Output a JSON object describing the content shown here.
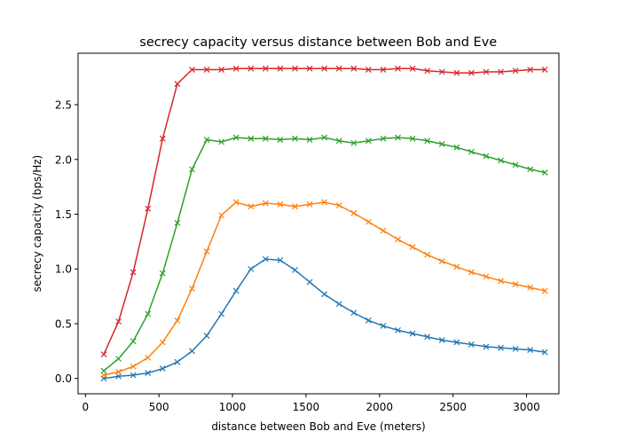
{
  "chart_data": {
    "type": "line",
    "title": "secrecy capacity versus distance between Bob and Eve",
    "xlabel": "distance between Bob and Eve (meters)",
    "ylabel": "secrecy capacity (bps/Hz)",
    "xlim": [
      -50,
      3220
    ],
    "ylim": [
      -0.14,
      2.97
    ],
    "xticks": [
      0,
      500,
      1000,
      1500,
      2000,
      2500,
      3000
    ],
    "xtick_labels": [
      "0",
      "500",
      "1000",
      "1500",
      "2000",
      "2500",
      "3000"
    ],
    "yticks": [
      0.0,
      0.5,
      1.0,
      1.5,
      2.0,
      2.5
    ],
    "ytick_labels": [
      "0.0",
      "0.5",
      "1.0",
      "1.5",
      "2.0",
      "2.5"
    ],
    "grid": false,
    "marker": "x",
    "x": [
      125,
      225,
      325,
      425,
      525,
      625,
      725,
      825,
      925,
      1025,
      1125,
      1225,
      1325,
      1425,
      1525,
      1625,
      1725,
      1825,
      1925,
      2025,
      2125,
      2225,
      2325,
      2425,
      2525,
      2625,
      2725,
      2825,
      2925,
      3025,
      3125
    ],
    "series": [
      {
        "color": "#1f77b4",
        "values": [
          0.0,
          0.02,
          0.03,
          0.05,
          0.09,
          0.15,
          0.25,
          0.39,
          0.59,
          0.8,
          1.0,
          1.09,
          1.08,
          0.99,
          0.88,
          0.77,
          0.68,
          0.6,
          0.53,
          0.48,
          0.44,
          0.41,
          0.38,
          0.35,
          0.33,
          0.31,
          0.29,
          0.28,
          0.27,
          0.26,
          0.24
        ]
      },
      {
        "color": "#ff7f0e",
        "values": [
          0.03,
          0.06,
          0.11,
          0.19,
          0.33,
          0.53,
          0.82,
          1.16,
          1.49,
          1.61,
          1.57,
          1.6,
          1.59,
          1.57,
          1.59,
          1.61,
          1.58,
          1.51,
          1.43,
          1.35,
          1.27,
          1.2,
          1.13,
          1.07,
          1.02,
          0.97,
          0.93,
          0.89,
          0.86,
          0.83,
          0.8
        ]
      },
      {
        "color": "#2ca02c",
        "values": [
          0.07,
          0.18,
          0.34,
          0.59,
          0.96,
          1.42,
          1.91,
          2.18,
          2.16,
          2.2,
          2.19,
          2.19,
          2.18,
          2.19,
          2.18,
          2.2,
          2.17,
          2.15,
          2.17,
          2.19,
          2.2,
          2.19,
          2.17,
          2.14,
          2.11,
          2.07,
          2.03,
          1.99,
          1.95,
          1.91,
          1.88
        ]
      },
      {
        "color": "#d62728",
        "values": [
          0.22,
          0.52,
          0.97,
          1.55,
          2.19,
          2.69,
          2.82,
          2.82,
          2.82,
          2.83,
          2.83,
          2.83,
          2.83,
          2.83,
          2.83,
          2.83,
          2.83,
          2.83,
          2.82,
          2.82,
          2.83,
          2.83,
          2.81,
          2.8,
          2.79,
          2.79,
          2.8,
          2.8,
          2.81,
          2.82,
          2.82
        ]
      }
    ]
  }
}
